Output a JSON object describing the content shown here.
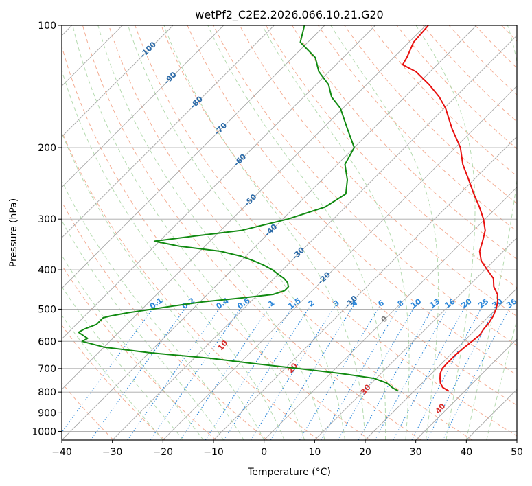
{
  "chart_data": {
    "type": "line",
    "title": "wetPf2_C2E2.2026.066.10.21.G20",
    "xlabel": "Temperature (°C)",
    "ylabel": "Pressure (hPa)",
    "xlim": [
      -40,
      50
    ],
    "ylim": [
      1050,
      100
    ],
    "x_ticks": [
      -40,
      -30,
      -20,
      -10,
      0,
      10,
      20,
      30,
      40,
      50
    ],
    "y_ticks": [
      100,
      200,
      300,
      400,
      500,
      600,
      700,
      800,
      900,
      1000
    ],
    "grid": true,
    "skew": "skew-T log-p",
    "colors": {
      "temperature": "#e8100f",
      "dewpoint": "#118a11",
      "isotherm": "#a6a6a6",
      "dry_adiabat": "#f4ad93",
      "moist_adiabat": "#b5dbb0",
      "mixing_ratio": "#2b86d9",
      "dry_label": "#d62a2a",
      "iso_label": "#2b6aa8"
    },
    "series": [
      {
        "name": "Temperature",
        "pressure": [
          795,
          780,
          760,
          740,
          720,
          700,
          680,
          650,
          620,
          600,
          580,
          560,
          540,
          520,
          500,
          480,
          460,
          440,
          420,
          400,
          380,
          360,
          340,
          320,
          300,
          280,
          260,
          240,
          220,
          200,
          180,
          160,
          150,
          140,
          130,
          125,
          120,
          110,
          100
        ],
        "values": [
          26.8,
          25.0,
          23.6,
          22.6,
          21.7,
          21.1,
          21.0,
          21.0,
          21.3,
          21.6,
          21.9,
          21.5,
          21.3,
          20.8,
          20.0,
          18.9,
          17.4,
          15.1,
          13.4,
          10.5,
          7.5,
          5.3,
          3.9,
          2.3,
          -0.3,
          -3.5,
          -7.2,
          -11.0,
          -15.2,
          -19.0,
          -24.3,
          -29.7,
          -33.2,
          -37.6,
          -42.8,
          -46.8,
          -47.4,
          -49.1,
          -49.5
        ]
      },
      {
        "name": "Dewpoint",
        "pressure": [
          795,
          780,
          760,
          740,
          720,
          700,
          680,
          660,
          640,
          620,
          600,
          590,
          570,
          560,
          545,
          530,
          525,
          520,
          510,
          500,
          490,
          480,
          470,
          460,
          450,
          440,
          430,
          420,
          410,
          400,
          390,
          380,
          370,
          360,
          350,
          340,
          330,
          320,
          300,
          280,
          260,
          240,
          220,
          200,
          180,
          160,
          150,
          140,
          130,
          120,
          110,
          100
        ],
        "values": [
          16.8,
          15.0,
          13.0,
          9.5,
          2.0,
          -7.5,
          -17.5,
          -27.0,
          -40.0,
          -50.0,
          -55.5,
          -55.0,
          -58.0,
          -57.5,
          -56.0,
          -56.0,
          -56.0,
          -55.0,
          -52.0,
          -48.0,
          -44.0,
          -39.5,
          -33.0,
          -27.0,
          -25.5,
          -25.5,
          -26.5,
          -28.0,
          -30.0,
          -32.0,
          -34.5,
          -37.5,
          -41.0,
          -46.0,
          -55.0,
          -61.0,
          -54.0,
          -46.0,
          -39.0,
          -34.0,
          -32.5,
          -35.0,
          -38.5,
          -40.0,
          -45.0,
          -50.5,
          -54.5,
          -57.5,
          -62.0,
          -65.5,
          -71.5,
          -74.0
        ]
      }
    ],
    "isotherm_labels": [
      "-100",
      "-90",
      "-80",
      "-70",
      "-60",
      "-50",
      "-40",
      "-30",
      "-20",
      "-10",
      "0"
    ],
    "dry_adiabat_labels": [
      "10",
      "20",
      "30",
      "40"
    ],
    "mixing_ratio_labels": [
      "0.1",
      "0.2",
      "0.4",
      "0.6",
      "1",
      "1.5",
      "2",
      "3",
      "4",
      "6",
      "8",
      "10",
      "13",
      "16",
      "20",
      "25",
      "30",
      "36"
    ]
  }
}
